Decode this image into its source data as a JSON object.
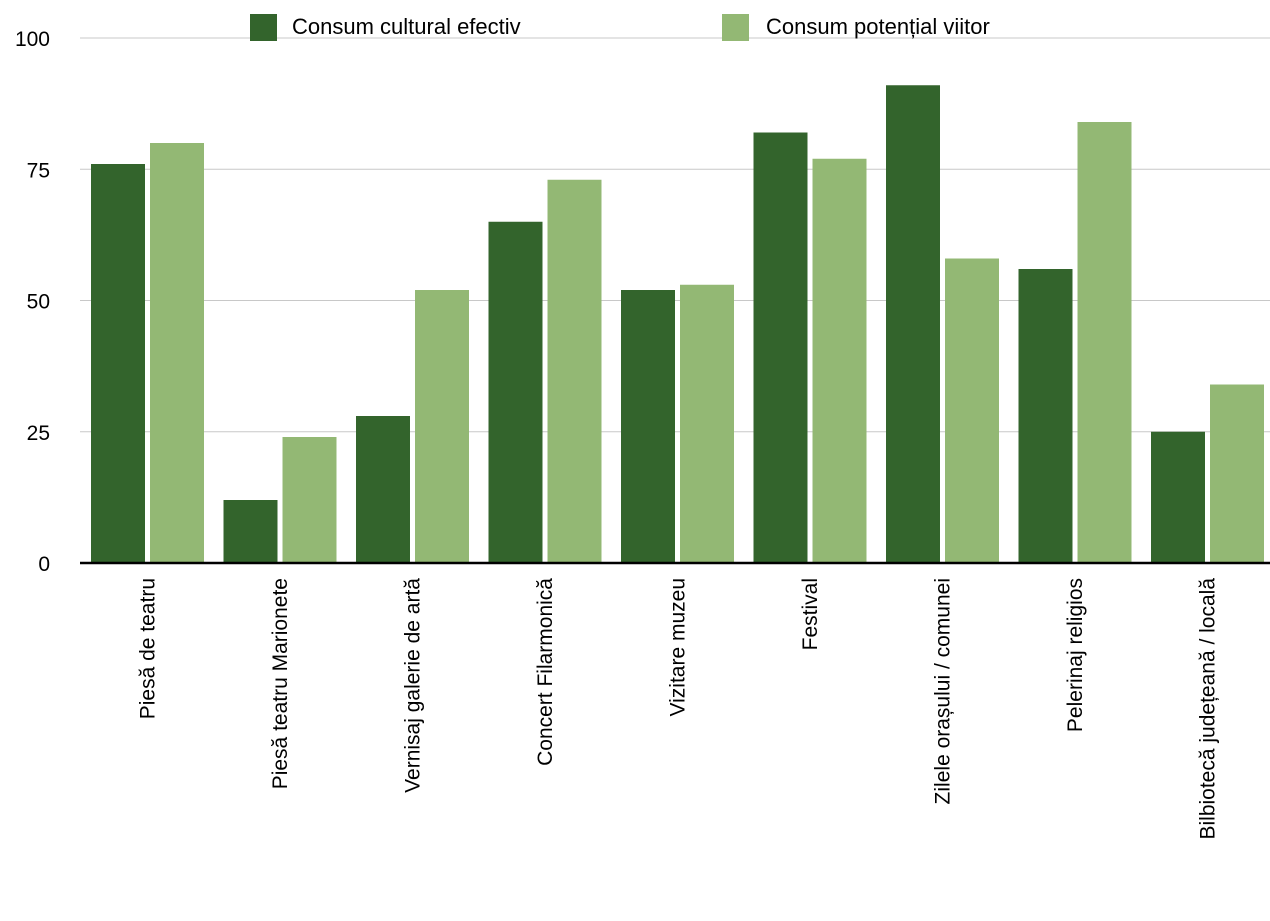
{
  "chart_data": {
    "type": "bar",
    "title": "",
    "xlabel": "",
    "ylabel": "",
    "ylim": [
      0,
      100
    ],
    "yticks": [
      0,
      25,
      50,
      75,
      100
    ],
    "grid": true,
    "legend_position": "top-center",
    "categories": [
      "Piesă de teatru",
      "Piesă teatru Marionete",
      "Vernisaj galerie de artă",
      "Concert Filarmonică",
      "Vizitare muzeu",
      "Festival",
      "Zilele orașului / comunei",
      "Pelerinaj religios",
      "Bilbiotecă județeană / locală"
    ],
    "series": [
      {
        "name": "Consum cultural efectiv",
        "color": "#33642c",
        "values": [
          76,
          12,
          28,
          65,
          52,
          82,
          91,
          56,
          25
        ]
      },
      {
        "name": "Consum potențial viitor",
        "color": "#93b874",
        "values": [
          80,
          24,
          52,
          73,
          53,
          77,
          58,
          84,
          34
        ]
      }
    ]
  }
}
